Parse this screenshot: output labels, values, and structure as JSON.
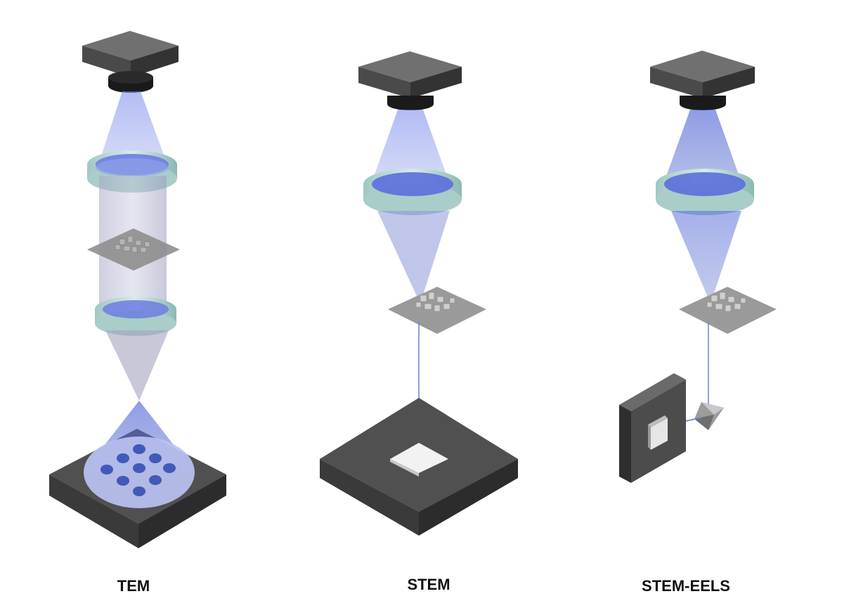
{
  "panels": [
    {
      "label": "TEM"
    },
    {
      "label": "STEM"
    },
    {
      "label": "STEM-EELS"
    }
  ],
  "colors": {
    "source_top": "#6e6e6e",
    "source_side": "#3c3c3c",
    "beam": "#7f8ff0",
    "lens_ring": "#b8d6d3",
    "sample_plane": "#9a9a9a",
    "detector": "#4e4e4e",
    "spot": "#4259b8"
  }
}
